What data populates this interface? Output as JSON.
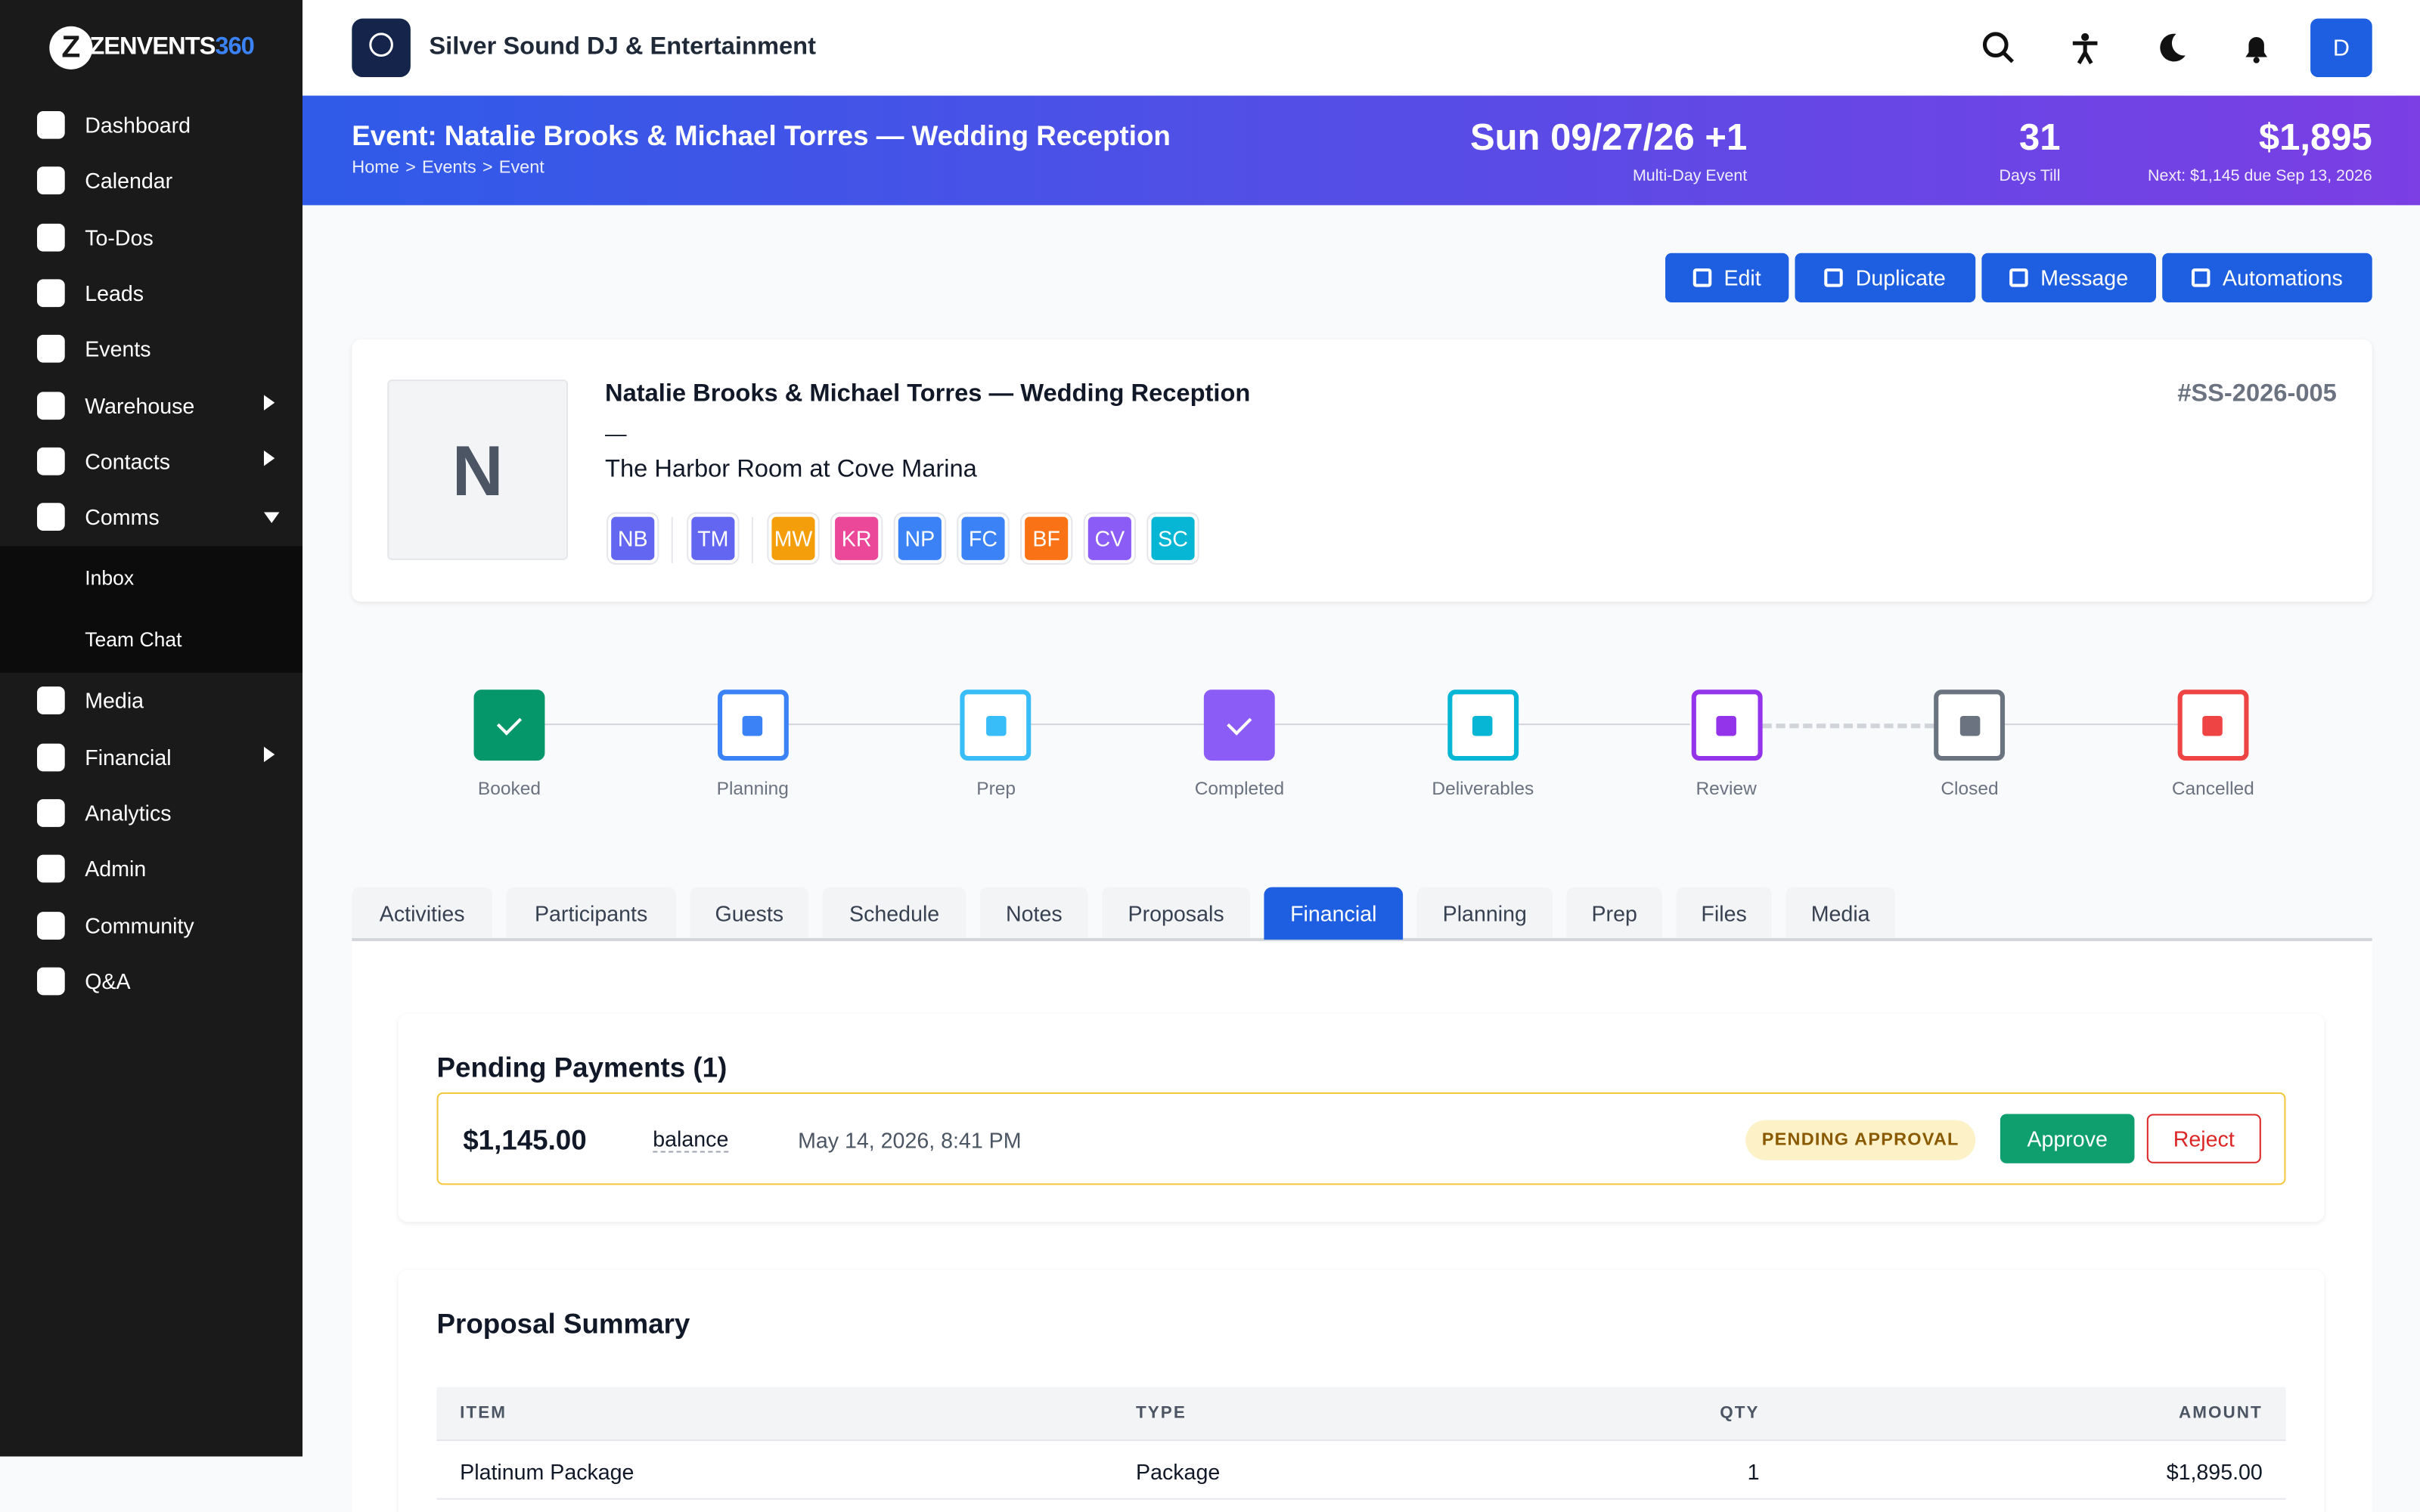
{
  "sidebar": {
    "brand": "ZENVENTS",
    "brand_suffix": "360",
    "nav": [
      {
        "label": "Dashboard"
      },
      {
        "label": "Calendar"
      },
      {
        "label": "To-Dos"
      },
      {
        "label": "Leads"
      },
      {
        "label": "Events"
      },
      {
        "label": "Warehouse",
        "submenu": "closed"
      },
      {
        "label": "Contacts",
        "submenu": "closed"
      },
      {
        "label": "Comms",
        "submenu": "open",
        "children": [
          "Inbox",
          "Team Chat"
        ]
      },
      {
        "label": "Media"
      },
      {
        "label": "Financial",
        "submenu": "closed"
      },
      {
        "label": "Analytics"
      },
      {
        "label": "Admin"
      },
      {
        "label": "Community"
      },
      {
        "label": "Q&A"
      }
    ]
  },
  "header": {
    "company": "Silver Sound DJ & Entertainment",
    "avatar": "D"
  },
  "banner": {
    "title": "Event: Natalie Brooks & Michael Torres — Wedding Reception",
    "breadcrumb": [
      "Home",
      "Events",
      "Event"
    ],
    "breadcrumb_separator": ">",
    "date": "Sun 09/27/26 +1",
    "date_note": "Multi-Day Event",
    "days": "31",
    "days_label": "Days Till",
    "amount": "$1,895",
    "amount_note": "Next: $1,145 due Sep 13, 2026"
  },
  "actions": [
    "Edit",
    "Duplicate",
    "Message",
    "Automations"
  ],
  "event": {
    "initial": "N",
    "name": "Natalie Brooks & Michael Torres — Wedding Reception",
    "dash": "—",
    "venue": "The Harbor Room at Cove Marina",
    "number": "#SS-2026-005",
    "participants": [
      {
        "initials": "NB",
        "color": "#6366f1"
      },
      {
        "initials": "TM",
        "color": "#6366f1"
      },
      {
        "initials": "MW",
        "color": "#f59e0b"
      },
      {
        "initials": "KR",
        "color": "#ec4899"
      },
      {
        "initials": "NP",
        "color": "#3b82f6"
      },
      {
        "initials": "FC",
        "color": "#3b82f6"
      },
      {
        "initials": "BF",
        "color": "#f97316"
      },
      {
        "initials": "CV",
        "color": "#8b5cf6"
      },
      {
        "initials": "SC",
        "color": "#06b6d4"
      }
    ]
  },
  "stages": [
    {
      "label": "Booked",
      "color": "#059669",
      "state": "done"
    },
    {
      "label": "Planning",
      "color": "#3b82f6",
      "state": "pending"
    },
    {
      "label": "Prep",
      "color": "#38bdf8",
      "state": "pending"
    },
    {
      "label": "Completed",
      "color": "#8b5cf6",
      "state": "done"
    },
    {
      "label": "Deliverables",
      "color": "#06b6d4",
      "state": "pending"
    },
    {
      "label": "Review",
      "color": "#9333ea",
      "state": "pending",
      "connector": "dashed"
    },
    {
      "label": "Closed",
      "color": "#6b7280",
      "state": "pending"
    },
    {
      "label": "Cancelled",
      "color": "#ef4444",
      "state": "pending"
    }
  ],
  "tabs": [
    "Activities",
    "Participants",
    "Guests",
    "Schedule",
    "Notes",
    "Proposals",
    "Financial",
    "Planning",
    "Prep",
    "Files",
    "Media"
  ],
  "active_tab": 6,
  "pending": {
    "title": "Pending Payments (1)",
    "amount": "$1,145.00",
    "type": "balance",
    "date": "May 14, 2026, 8:41 PM",
    "status": "PENDING APPROVAL",
    "approve": "Approve",
    "reject": "Reject"
  },
  "proposal": {
    "title": "Proposal Summary",
    "columns": [
      "ITEM",
      "TYPE",
      "QTY",
      "AMOUNT"
    ],
    "rows": [
      [
        "Platinum Package",
        "Package",
        "1",
        "$1,895.00"
      ]
    ]
  }
}
